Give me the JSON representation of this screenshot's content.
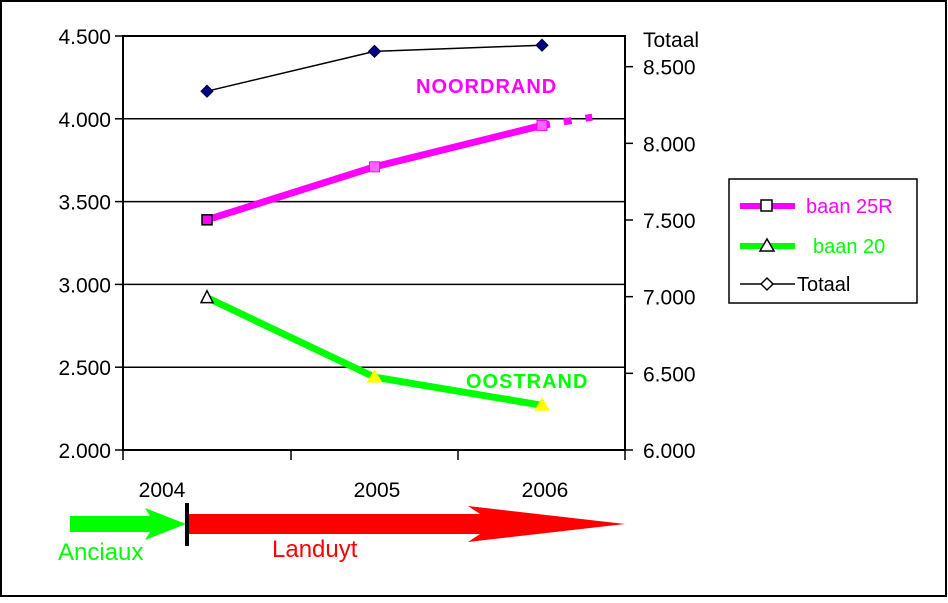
{
  "chart_data": {
    "type": "line",
    "x_tick_labels": [
      "2004",
      "2005",
      "2006"
    ],
    "left_axis": {
      "ylim": [
        2000,
        4500
      ],
      "ticks": [
        4500,
        4000,
        3500,
        3000,
        2500,
        2000
      ],
      "tick_labels": [
        "4.500",
        "4.000",
        "3.500",
        "3.000",
        "2.500",
        "2.000"
      ]
    },
    "right_axis": {
      "title": "Totaal",
      "ylim": [
        6000,
        8700
      ],
      "ticks": [
        8500,
        8000,
        7500,
        7000,
        6500,
        6000
      ],
      "tick_labels": [
        "8.500",
        "8.000",
        "7.500",
        "7.000",
        "6.500",
        "6.000"
      ]
    },
    "grid": true,
    "series": [
      {
        "name": "baan 25R",
        "axis": "left",
        "color": "#ff00ff",
        "marker": "square",
        "x": [
          2004,
          2005,
          2006
        ],
        "values": [
          3390,
          3710,
          3960
        ],
        "projection": {
          "x": [
            2006,
            2006.3
          ],
          "values": [
            3960,
            4010
          ]
        }
      },
      {
        "name": "baan 20",
        "axis": "left",
        "color": "#00ff00",
        "marker": "triangle",
        "x": [
          2004,
          2005,
          2006
        ],
        "values": [
          2920,
          2440,
          2270
        ]
      },
      {
        "name": "Totaal",
        "axis": "right",
        "color": "#000000",
        "marker": "diamond",
        "x": [
          2004,
          2005,
          2006
        ],
        "values": [
          8340,
          8600,
          8640
        ]
      }
    ],
    "legend": {
      "placement": "right",
      "entries": [
        "baan 25R",
        "baan 20",
        "Totaal"
      ]
    },
    "annotations": [
      {
        "text": "NOORDRAND",
        "color": "#ff00ff"
      },
      {
        "text": "OOSTRAND",
        "color": "#00ff00"
      }
    ],
    "timeline": [
      {
        "label": "Anciaux",
        "color": "#00ff00"
      },
      {
        "label": "Landuyt",
        "color": "#ff0000"
      }
    ]
  }
}
